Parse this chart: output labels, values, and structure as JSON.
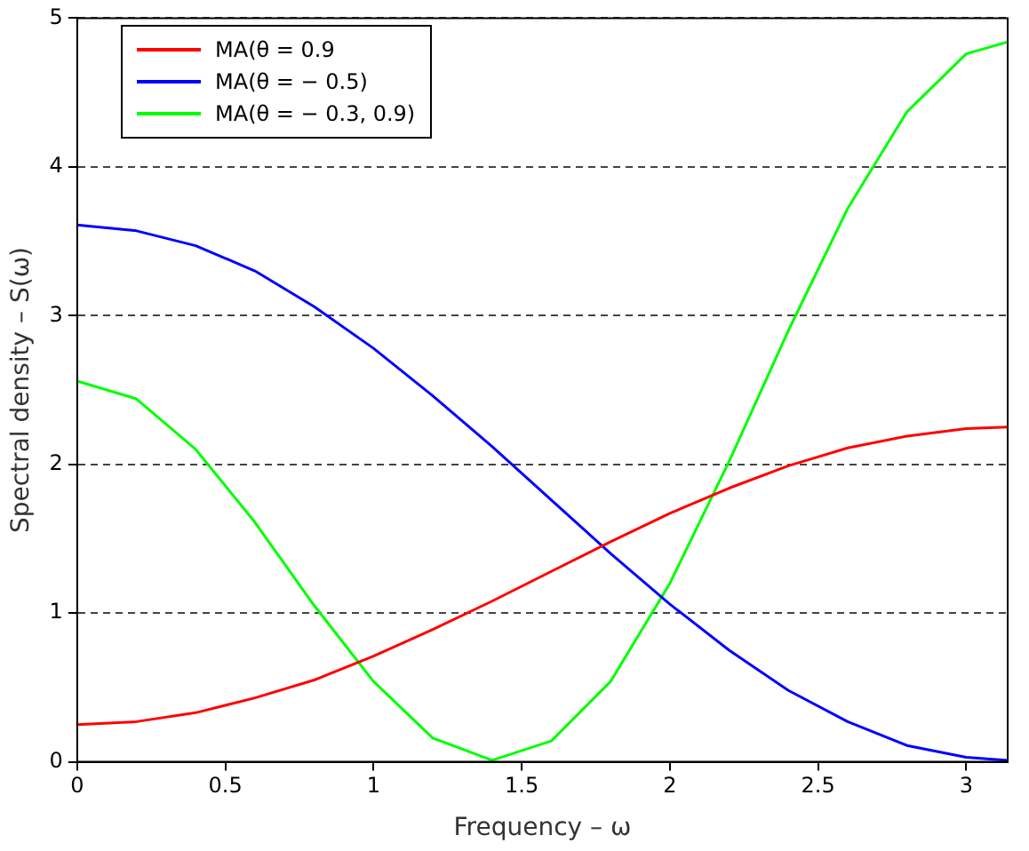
{
  "chart_data": {
    "type": "line",
    "xlabel": "Frequency – ω",
    "ylabel": "Spectral density – S(ω)",
    "x": [
      0,
      0.2,
      0.4,
      0.6,
      0.8,
      1.0,
      1.2,
      1.4,
      1.6,
      1.8,
      2.0,
      2.2,
      2.4,
      2.6,
      2.8,
      3.0,
      3.14
    ],
    "series": [
      {
        "name": "MA(θ = 0.9",
        "color": "#ff0000",
        "values": [
          0.25,
          0.27,
          0.33,
          0.43,
          0.55,
          0.71,
          0.89,
          1.08,
          1.28,
          1.48,
          1.67,
          1.84,
          1.99,
          2.11,
          2.19,
          2.24,
          2.25
        ]
      },
      {
        "name": "MA(θ = − 0.5)",
        "color": "#0000ff",
        "values": [
          3.61,
          3.57,
          3.47,
          3.3,
          3.06,
          2.78,
          2.46,
          2.12,
          1.76,
          1.4,
          1.06,
          0.75,
          0.48,
          0.27,
          0.11,
          0.03,
          0.01
        ]
      },
      {
        "name": "MA(θ = − 0.3, 0.9)",
        "color": "#00ff00",
        "values": [
          2.56,
          2.44,
          2.1,
          1.61,
          1.05,
          0.54,
          0.16,
          0.01,
          0.14,
          0.54,
          1.2,
          2.02,
          2.9,
          3.72,
          4.37,
          4.76,
          4.84
        ]
      }
    ],
    "xlim": [
      0,
      3.14
    ],
    "xticks": [
      0,
      0.5,
      1,
      1.5,
      2,
      2.5,
      3
    ],
    "ylim": [
      0,
      5
    ],
    "yticks": [
      0,
      1,
      2,
      3,
      4,
      5
    ],
    "grid": "y",
    "legend": "top left",
    "marker": "none",
    "line_style": "solid"
  }
}
